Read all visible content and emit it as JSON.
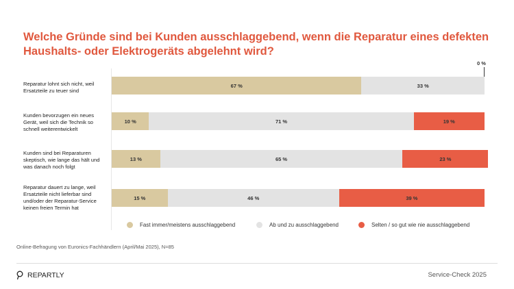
{
  "chart_data": {
    "type": "bar",
    "orientation": "horizontal",
    "stacked": true,
    "title": "Welche Gründe sind bei Kunden ausschlaggebend, wenn die Reparatur eines defekten Haushalts- oder Elektrogeräts abgelehnt wird?",
    "categories": [
      "Reparatur lohnt sich nicht, weil Ersatzteile zu teuer sind",
      "Kunden bevorzugen ein neues Gerät, weil sich die Technik so schnell weiterentwickelt",
      "Kunden sind bei Reparaturen skeptisch, wie lange das hält und was danach noch folgt",
      "Reparatur dauert zu lange, weil Ersatzteile nicht lieferbar sind und/oder der Reparatur-Service keinen freien Termin hat"
    ],
    "series": [
      {
        "name": "Fast immer/meistens ausschlaggebend",
        "color": "#d9c9a0",
        "values": [
          67,
          10,
          13,
          15
        ]
      },
      {
        "name": "Ab und zu ausschlaggebend",
        "color": "#e3e3e3",
        "values": [
          33,
          71,
          65,
          46
        ]
      },
      {
        "name": "Selten / so gut wie nie ausschlaggebend",
        "color": "#e85d45",
        "values": [
          0,
          19,
          23,
          39
        ]
      }
    ],
    "value_suffix": " %",
    "zero_label": "0 %",
    "xlim": [
      0,
      100
    ],
    "grid": false,
    "legend_position": "bottom"
  },
  "footer": {
    "source": "Online-Befragung von Euronics-Fachhändlern (April/Mai 2025), N=85",
    "logo": "REPARTLY",
    "right": "Service-Check 2025"
  }
}
